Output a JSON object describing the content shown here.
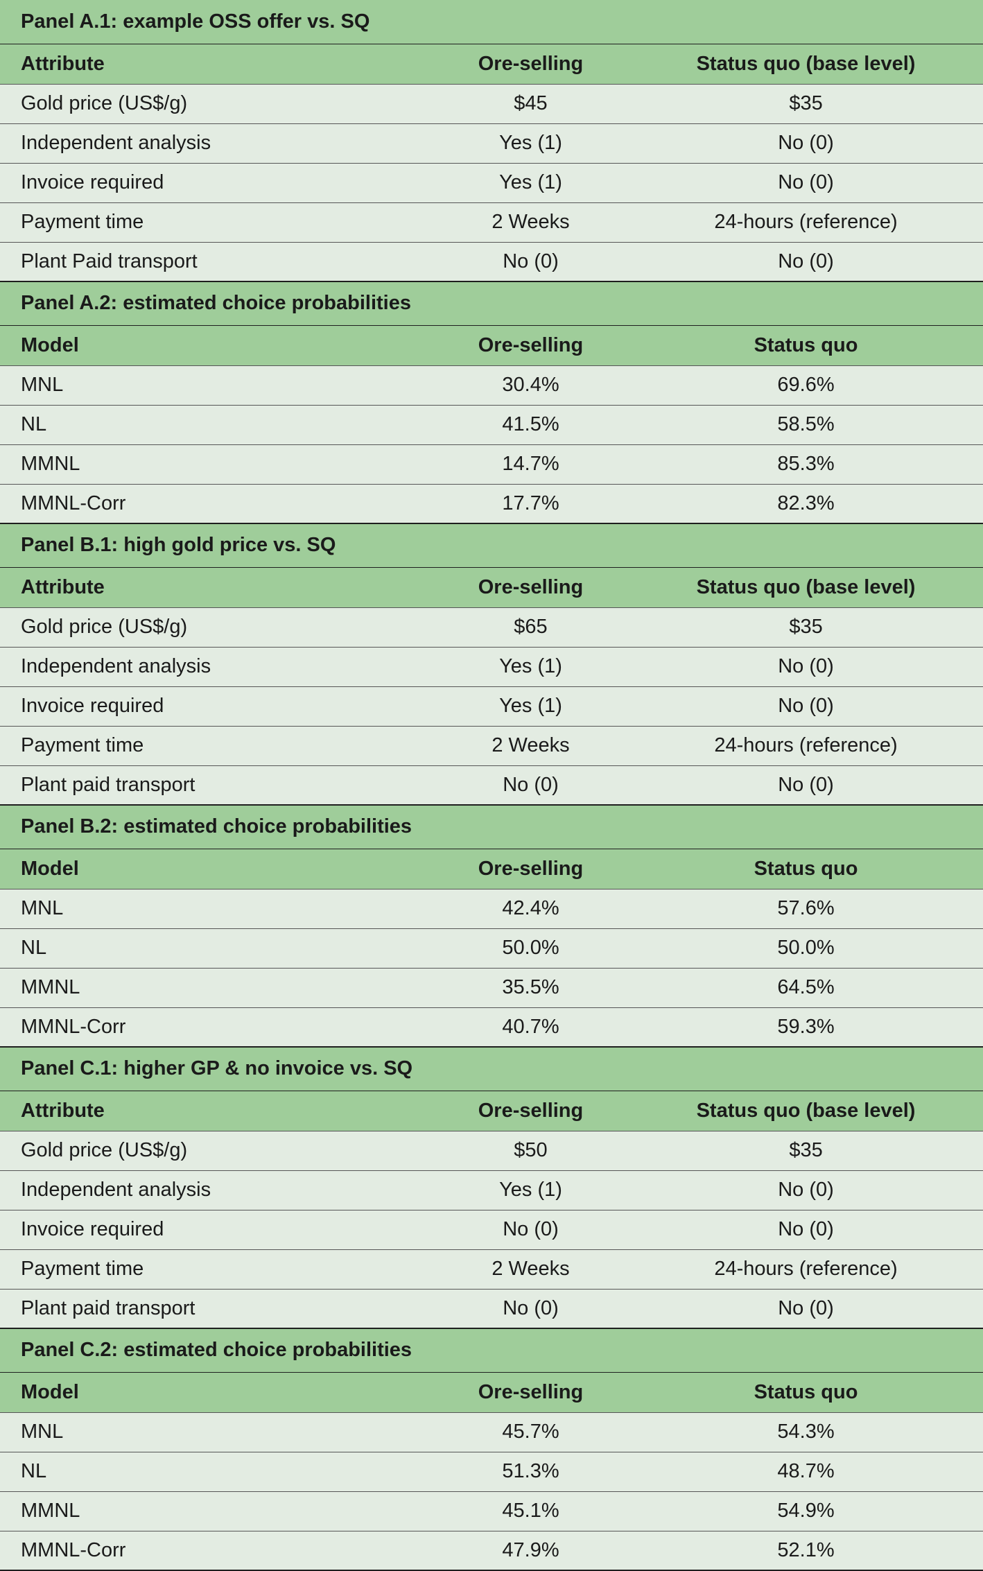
{
  "panels": [
    {
      "title": "Panel A.1: example OSS offer vs. SQ",
      "headers": [
        "Attribute",
        "Ore-selling",
        "Status quo (base level)"
      ],
      "rows": [
        [
          "Gold price (US$/g)",
          "$45",
          "$35"
        ],
        [
          "Independent analysis",
          "Yes (1)",
          "No (0)"
        ],
        [
          "Invoice required",
          "Yes (1)",
          "No (0)"
        ],
        [
          "Payment time",
          "2 Weeks",
          "24-hours (reference)"
        ],
        [
          "Plant Paid transport",
          "No (0)",
          "No (0)"
        ]
      ]
    },
    {
      "title": "Panel A.2: estimated choice probabilities",
      "headers": [
        "Model",
        "Ore-selling",
        "Status quo"
      ],
      "rows": [
        [
          "MNL",
          "30.4%",
          "69.6%"
        ],
        [
          "NL",
          "41.5%",
          "58.5%"
        ],
        [
          "MMNL",
          "14.7%",
          "85.3%"
        ],
        [
          "MMNL-Corr",
          "17.7%",
          "82.3%"
        ]
      ]
    },
    {
      "title": "Panel B.1: high gold price vs. SQ",
      "headers": [
        "Attribute",
        "Ore-selling",
        "Status quo (base level)"
      ],
      "rows": [
        [
          "Gold price (US$/g)",
          "$65",
          "$35"
        ],
        [
          "Independent analysis",
          "Yes (1)",
          "No (0)"
        ],
        [
          "Invoice required",
          "Yes (1)",
          "No (0)"
        ],
        [
          "Payment time",
          "2 Weeks",
          "24-hours (reference)"
        ],
        [
          "Plant paid transport",
          "No (0)",
          "No (0)"
        ]
      ]
    },
    {
      "title": "Panel B.2: estimated choice probabilities",
      "headers": [
        "Model",
        "Ore-selling",
        "Status quo"
      ],
      "rows": [
        [
          "MNL",
          "42.4%",
          "57.6%"
        ],
        [
          "NL",
          "50.0%",
          "50.0%"
        ],
        [
          "MMNL",
          "35.5%",
          "64.5%"
        ],
        [
          "MMNL-Corr",
          "40.7%",
          "59.3%"
        ]
      ]
    },
    {
      "title": "Panel C.1: higher GP & no invoice vs. SQ",
      "headers": [
        "Attribute",
        "Ore-selling",
        "Status quo (base level)"
      ],
      "rows": [
        [
          "Gold price (US$/g)",
          "$50",
          "$35"
        ],
        [
          "Independent analysis",
          "Yes (1)",
          "No (0)"
        ],
        [
          "Invoice required",
          "No (0)",
          "No (0)"
        ],
        [
          "Payment time",
          "2 Weeks",
          "24-hours (reference)"
        ],
        [
          "Plant paid transport",
          "No (0)",
          "No (0)"
        ]
      ]
    },
    {
      "title": "Panel C.2: estimated choice probabilities",
      "headers": [
        "Model",
        "Ore-selling",
        "Status quo"
      ],
      "rows": [
        [
          "MNL",
          "45.7%",
          "54.3%"
        ],
        [
          "NL",
          "51.3%",
          "48.7%"
        ],
        [
          "MMNL",
          "45.1%",
          "54.9%"
        ],
        [
          "MMNL-Corr",
          "47.9%",
          "52.1%"
        ]
      ]
    }
  ]
}
